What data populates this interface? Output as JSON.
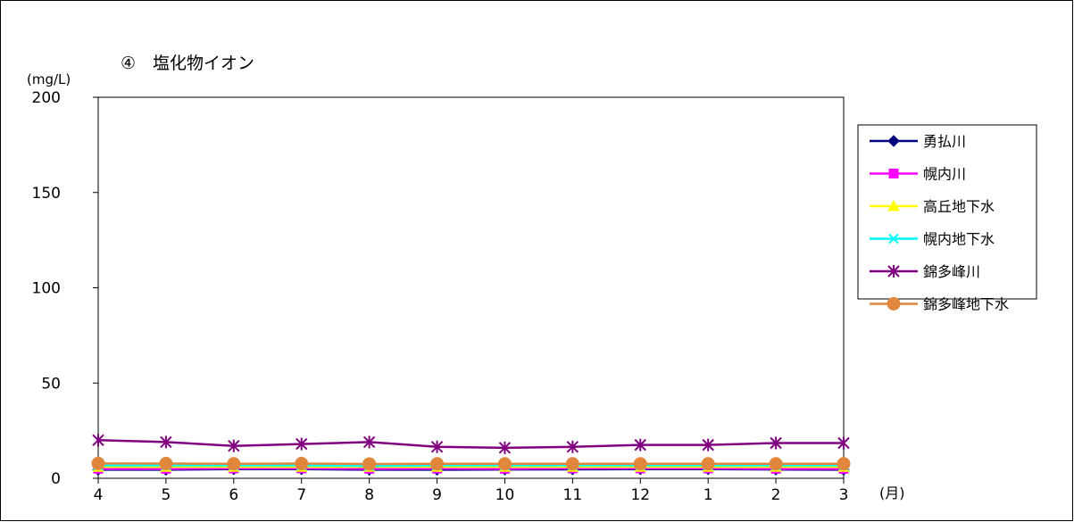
{
  "chart_data": {
    "type": "line",
    "title": "④　塩化物イオン",
    "ylabel": "(mg/L)",
    "xunit": "(月)",
    "categories": [
      "4",
      "5",
      "6",
      "7",
      "8",
      "9",
      "10",
      "11",
      "12",
      "1",
      "2",
      "3"
    ],
    "ylim": [
      0,
      200
    ],
    "yticks": [
      0,
      50,
      100,
      150,
      200
    ],
    "grid": false,
    "legend_position": "right",
    "series": [
      {
        "name": "勇払川",
        "color": "#000080",
        "marker": "diamond",
        "values": [
          4.5,
          4.5,
          4.8,
          4.8,
          4.5,
          4.5,
          4.6,
          4.7,
          4.8,
          4.8,
          4.6,
          4.5
        ]
      },
      {
        "name": "幌内川",
        "color": "#ff00ff",
        "marker": "square",
        "values": [
          5.0,
          5.0,
          5.2,
          5.2,
          5.0,
          5.1,
          5.0,
          5.2,
          5.2,
          5.2,
          5.0,
          5.0
        ]
      },
      {
        "name": "高丘地下水",
        "color": "#ffff00",
        "marker": "triangle",
        "values": [
          6.0,
          6.0,
          6.0,
          6.0,
          6.0,
          6.0,
          6.0,
          6.0,
          6.0,
          6.0,
          6.0,
          6.0
        ]
      },
      {
        "name": "幌内地下水",
        "color": "#00ffff",
        "marker": "x",
        "values": [
          6.8,
          6.8,
          6.8,
          6.8,
          6.5,
          6.8,
          6.8,
          6.8,
          6.8,
          6.8,
          6.8,
          6.8
        ]
      },
      {
        "name": "錦多峰川",
        "color": "#800080",
        "marker": "star",
        "values": [
          20.0,
          19.0,
          17.0,
          18.0,
          19.0,
          16.5,
          16.0,
          16.5,
          17.5,
          17.5,
          18.5,
          18.5
        ]
      },
      {
        "name": "錦多峰地下水",
        "color": "#e0873d",
        "marker": "circle",
        "values": [
          7.8,
          7.7,
          7.6,
          7.7,
          7.5,
          7.6,
          7.6,
          7.6,
          7.6,
          7.6,
          7.6,
          7.6
        ]
      }
    ]
  }
}
